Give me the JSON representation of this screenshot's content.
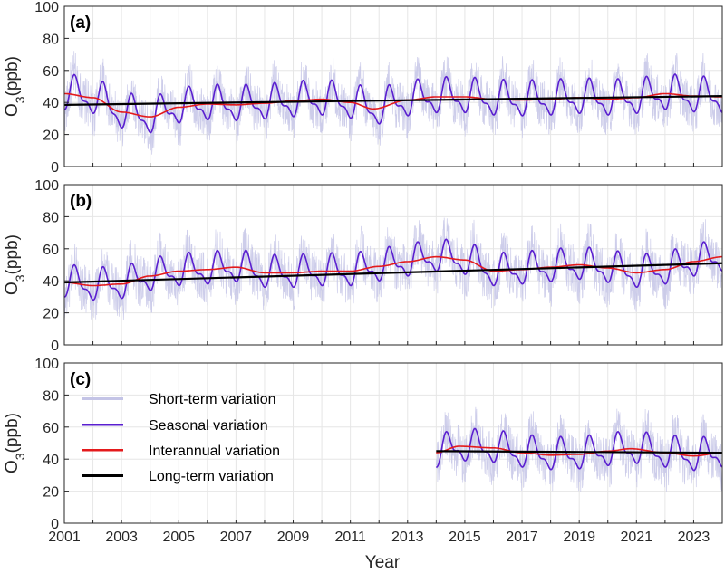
{
  "chart_data": {
    "type": "line",
    "xlabel": "Year",
    "xlim": [
      2001,
      2024
    ],
    "x_ticks": [
      "2001",
      "2003",
      "2005",
      "2007",
      "2009",
      "2011",
      "2013",
      "2015",
      "2017",
      "2019",
      "2021",
      "2023"
    ],
    "ylim": [
      0,
      100
    ],
    "y_ticks": [
      "0",
      "20",
      "40",
      "60",
      "80",
      "100"
    ],
    "ylabel": {
      "base": "O",
      "sub": "3",
      "unit": "(ppb)"
    },
    "legend": {
      "position": "upper-left of panel (c)",
      "entries": [
        {
          "label": "Short-term variation",
          "color": "#c4c4e6"
        },
        {
          "label": "Seasonal variation",
          "color": "#5a1fd0"
        },
        {
          "label": "Interannual variation",
          "color": "#e41a1c"
        },
        {
          "label": "Long-term variation",
          "color": "#000000"
        }
      ]
    },
    "panels": [
      {
        "label": "(a)",
        "start": 2001,
        "end": 2024,
        "series": [
          {
            "name": "Long-term variation",
            "x": [
              2001,
              2024
            ],
            "y": [
              38.5,
              44
            ]
          },
          {
            "name": "Interannual variation",
            "x": [
              2001,
              2002,
              2003,
              2004,
              2005,
              2006,
              2007,
              2008,
              2009,
              2010,
              2011,
              2011.8,
              2013,
              2014,
              2015,
              2016,
              2017,
              2018,
              2019,
              2020,
              2021,
              2022,
              2023,
              2024
            ],
            "y": [
              45.5,
              43,
              34,
              31,
              37,
              39,
              38.5,
              39.5,
              41,
              42,
              40,
              36,
              41.5,
              43.5,
              43.5,
              42,
              41.5,
              42,
              43,
              42,
              43,
              45.5,
              44,
              43.5
            ]
          },
          {
            "name": "Seasonal variation",
            "amplitude": 12,
            "periods_per_year": 1
          },
          {
            "name": "Short-term variation",
            "spread": 15
          }
        ]
      },
      {
        "label": "(b)",
        "start": 2001,
        "end": 2024,
        "series": [
          {
            "name": "Long-term variation",
            "x": [
              2001,
              2024
            ],
            "y": [
              39,
              51
            ]
          },
          {
            "name": "Interannual variation",
            "x": [
              2001,
              2002,
              2003,
              2004,
              2005,
              2006,
              2007,
              2008,
              2009,
              2010,
              2011,
              2012,
              2013,
              2014,
              2015,
              2016,
              2017,
              2018,
              2019,
              2020,
              2021,
              2022,
              2023,
              2024
            ],
            "y": [
              39,
              37,
              38,
              43,
              46,
              47,
              48.5,
              45,
              45,
              46,
              46,
              49,
              52,
              55,
              53,
              46,
              47,
              48.5,
              50,
              48,
              45,
              47,
              52,
              55
            ]
          },
          {
            "name": "Seasonal variation",
            "amplitude": 11,
            "periods_per_year": 1
          },
          {
            "name": "Short-term variation",
            "spread": 16
          }
        ]
      },
      {
        "label": "(c)",
        "start": 2014,
        "end": 2024,
        "series": [
          {
            "name": "Long-term variation",
            "x": [
              2014,
              2024
            ],
            "y": [
              45,
              44
            ]
          },
          {
            "name": "Interannual variation",
            "x": [
              2014,
              2014.8,
              2016,
              2017,
              2018,
              2019,
              2020,
              2020.8,
              2022,
              2023,
              2024
            ],
            "y": [
              44,
              48,
              47,
              44,
              42.5,
              43,
              45,
              46.5,
              44,
              42,
              44
            ]
          },
          {
            "name": "Seasonal variation",
            "amplitude": 11,
            "periods_per_year": 1
          },
          {
            "name": "Short-term variation",
            "spread": 16
          }
        ]
      }
    ]
  }
}
